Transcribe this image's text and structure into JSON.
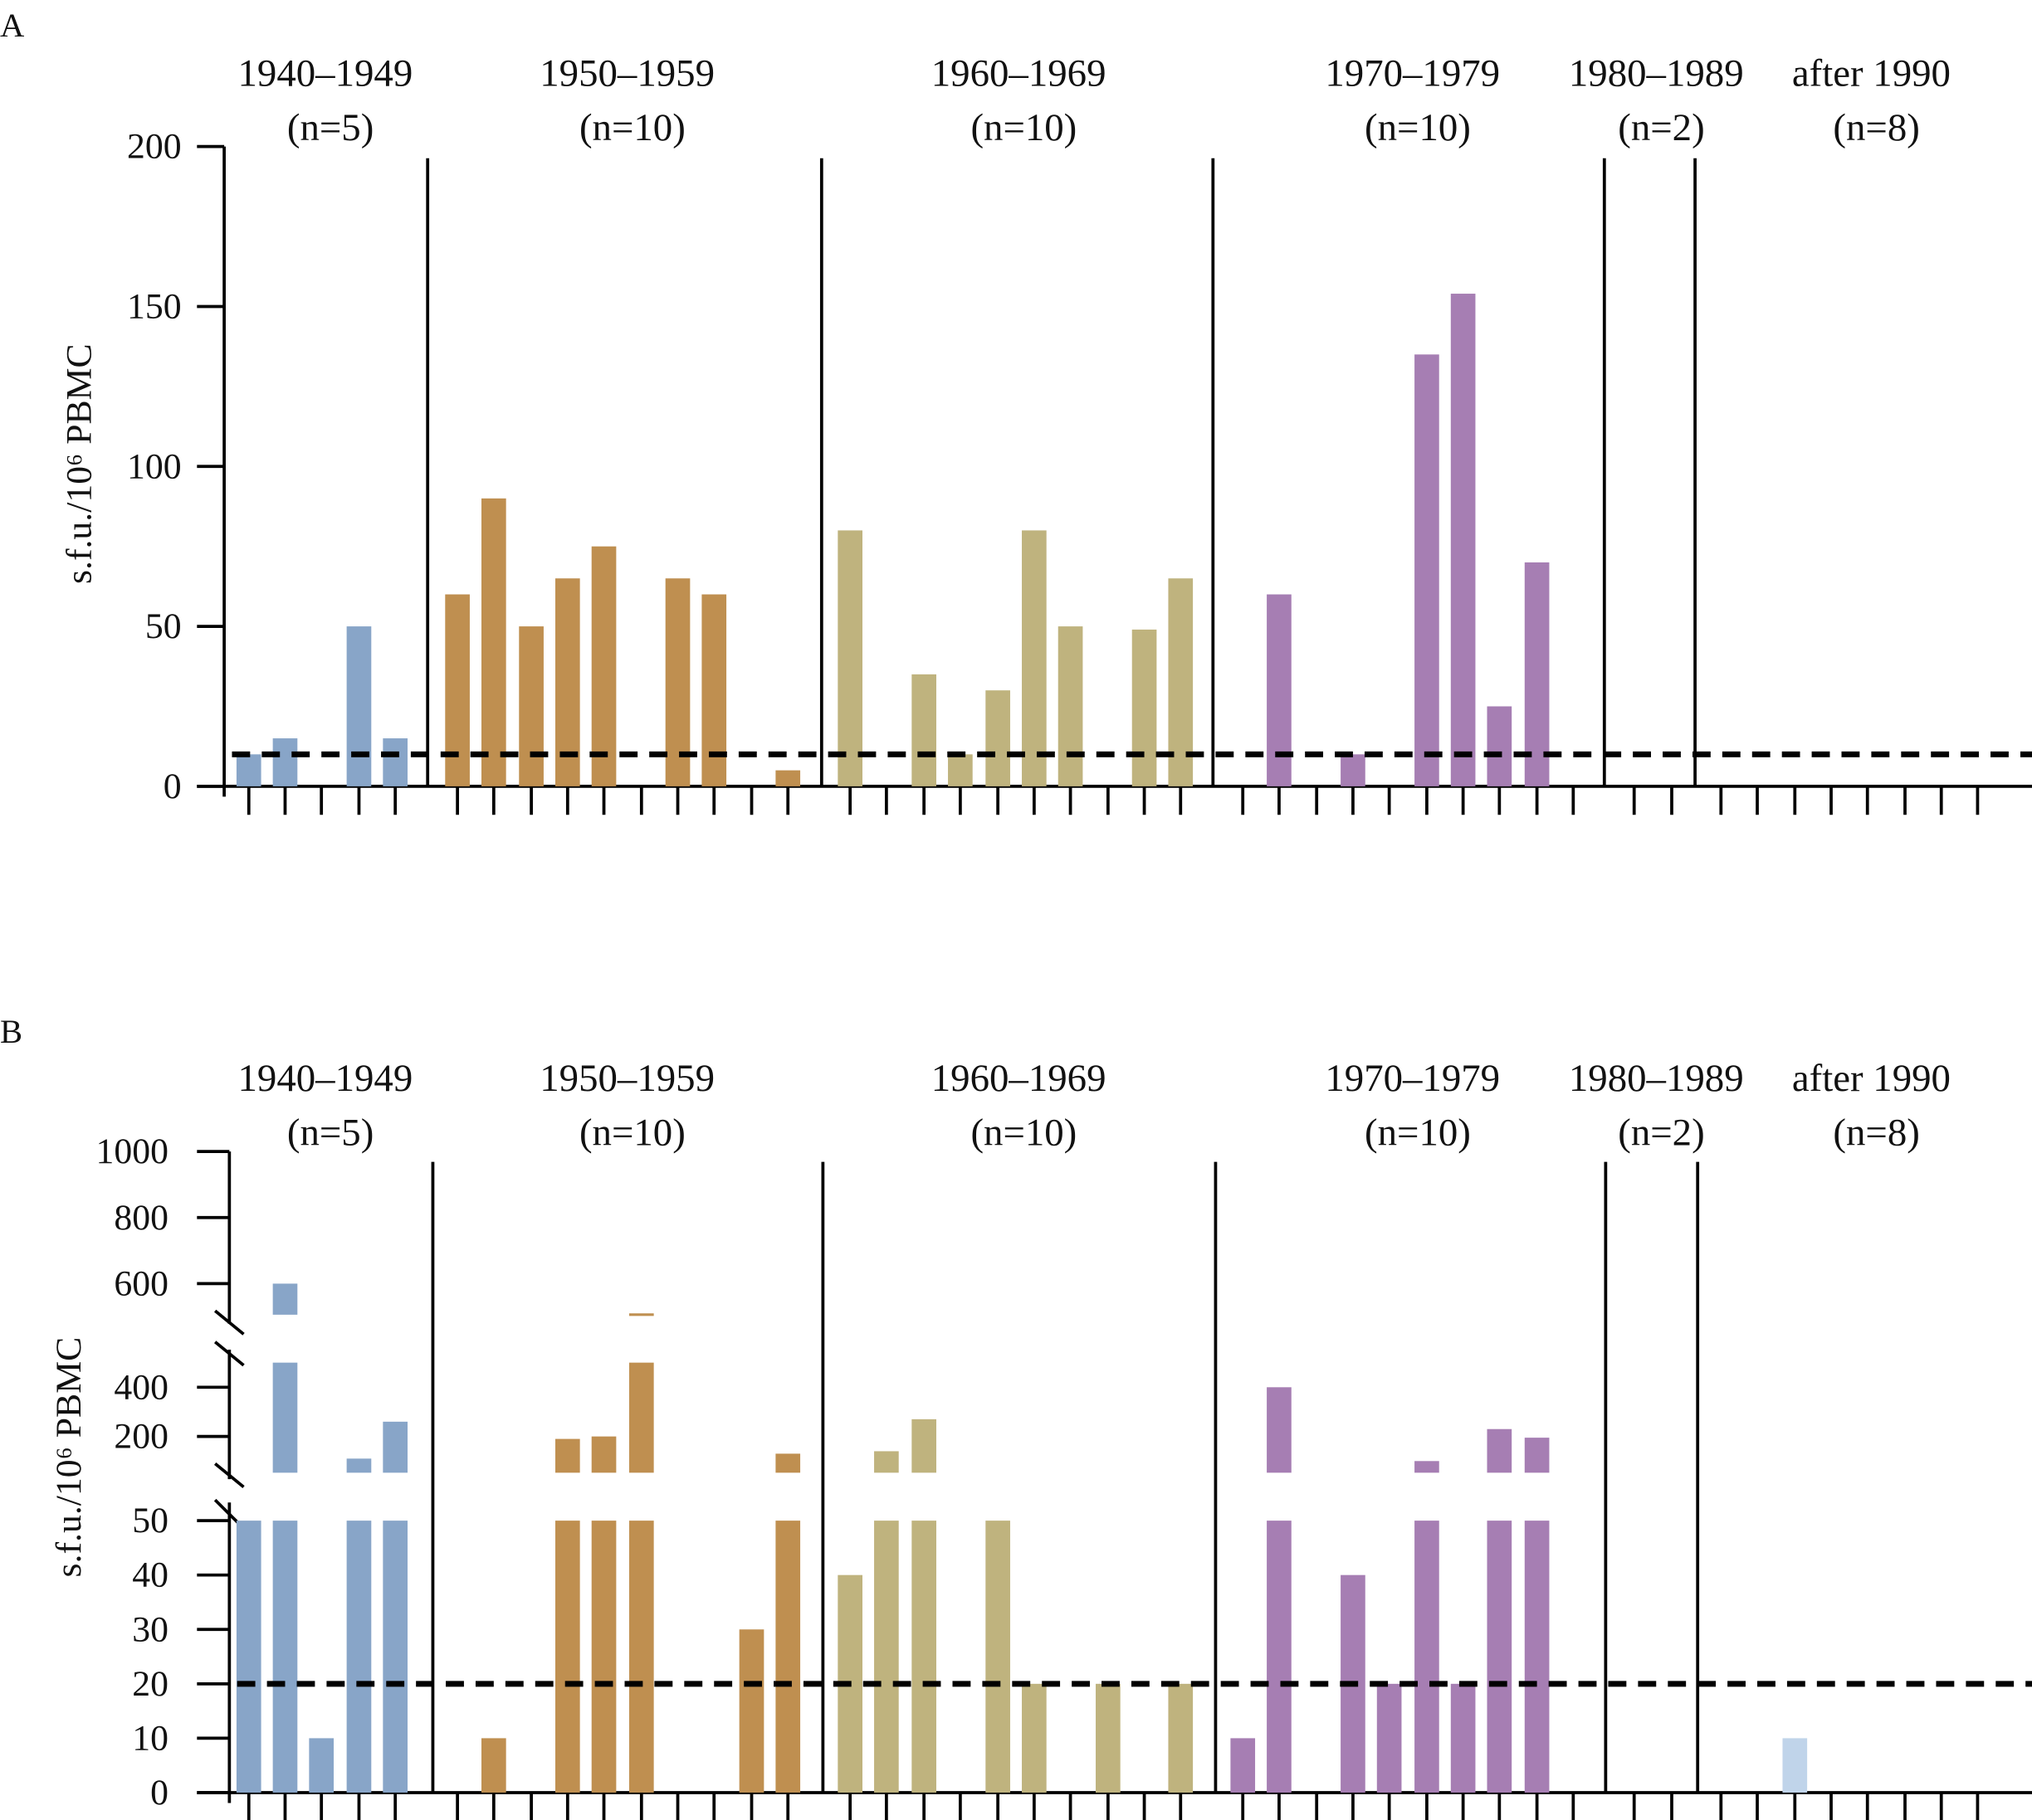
{
  "colors": {
    "1940–1949": "#88a5c8",
    "1950–1959": "#bf8f50",
    "1960–1969": "#bfb37e",
    "1970–1979": "#a67eb3",
    "1980–1989": "#a67eb3",
    "after 1990": "#c0d4ea",
    "threshold": "#000000"
  },
  "chart_data": [
    {
      "panel": "A",
      "type": "bar",
      "ylabel": "s.f.u./10⁶ PBMC",
      "ylim": [
        0,
        200
      ],
      "yticks": [
        "0",
        "50",
        "100",
        "150",
        "200"
      ],
      "threshold": 10,
      "groups": [
        {
          "label": "1940–1949",
          "n": "(n=5)",
          "values": [
            10,
            15,
            0,
            50,
            15
          ]
        },
        {
          "label": "1950–1959",
          "n": "(n=10)",
          "values": [
            60,
            90,
            50,
            65,
            75,
            0,
            65,
            60,
            0,
            5
          ]
        },
        {
          "label": "1960–1969",
          "n": "(n=10)",
          "values": [
            80,
            0,
            35,
            10,
            30,
            80,
            50,
            0,
            49,
            65
          ]
        },
        {
          "label": "1970–1979",
          "n": "(n=10)",
          "values": [
            0,
            60,
            0,
            10,
            0,
            135,
            154,
            25,
            70,
            0
          ]
        },
        {
          "label": "1980–1989",
          "n": "(n=2)",
          "values": [
            0,
            0
          ]
        },
        {
          "label": "after 1990",
          "n": "(n=8)",
          "values": [
            0,
            0,
            0,
            0,
            0,
            0,
            0,
            0
          ]
        }
      ]
    },
    {
      "panel": "B",
      "type": "bar",
      "ylabel": "s.f.u./10⁶ PBMC",
      "axis_breaks": [
        [
          50,
          100
        ],
        [
          500,
          500
        ]
      ],
      "yticks": [
        "0",
        "10",
        "20",
        "30",
        "40",
        "50",
        "200",
        "400",
        "600",
        "800",
        "1000"
      ],
      "threshold": 20,
      "groups": [
        {
          "label": "1940–1949",
          "n": "(n=5)",
          "values": [
            50,
            600,
            10,
            110,
            260
          ]
        },
        {
          "label": "1950–1959",
          "n": "(n=10)",
          "values": [
            0,
            10,
            0,
            190,
            200,
            510,
            0,
            0,
            30,
            130
          ]
        },
        {
          "label": "1960–1969",
          "n": "(n=10)",
          "values": [
            40,
            140,
            270,
            0,
            50,
            20,
            0,
            20,
            0,
            20
          ]
        },
        {
          "label": "1970–1979",
          "n": "(n=10)",
          "values": [
            10,
            400,
            0,
            40,
            20,
            100,
            20,
            230,
            195,
            0
          ]
        },
        {
          "label": "1980–1989",
          "n": "(n=2)",
          "values": [
            0,
            0
          ]
        },
        {
          "label": "after 1990",
          "n": "(n=8)",
          "values": [
            0,
            0,
            10,
            0,
            0,
            0,
            0,
            0
          ]
        }
      ]
    }
  ]
}
